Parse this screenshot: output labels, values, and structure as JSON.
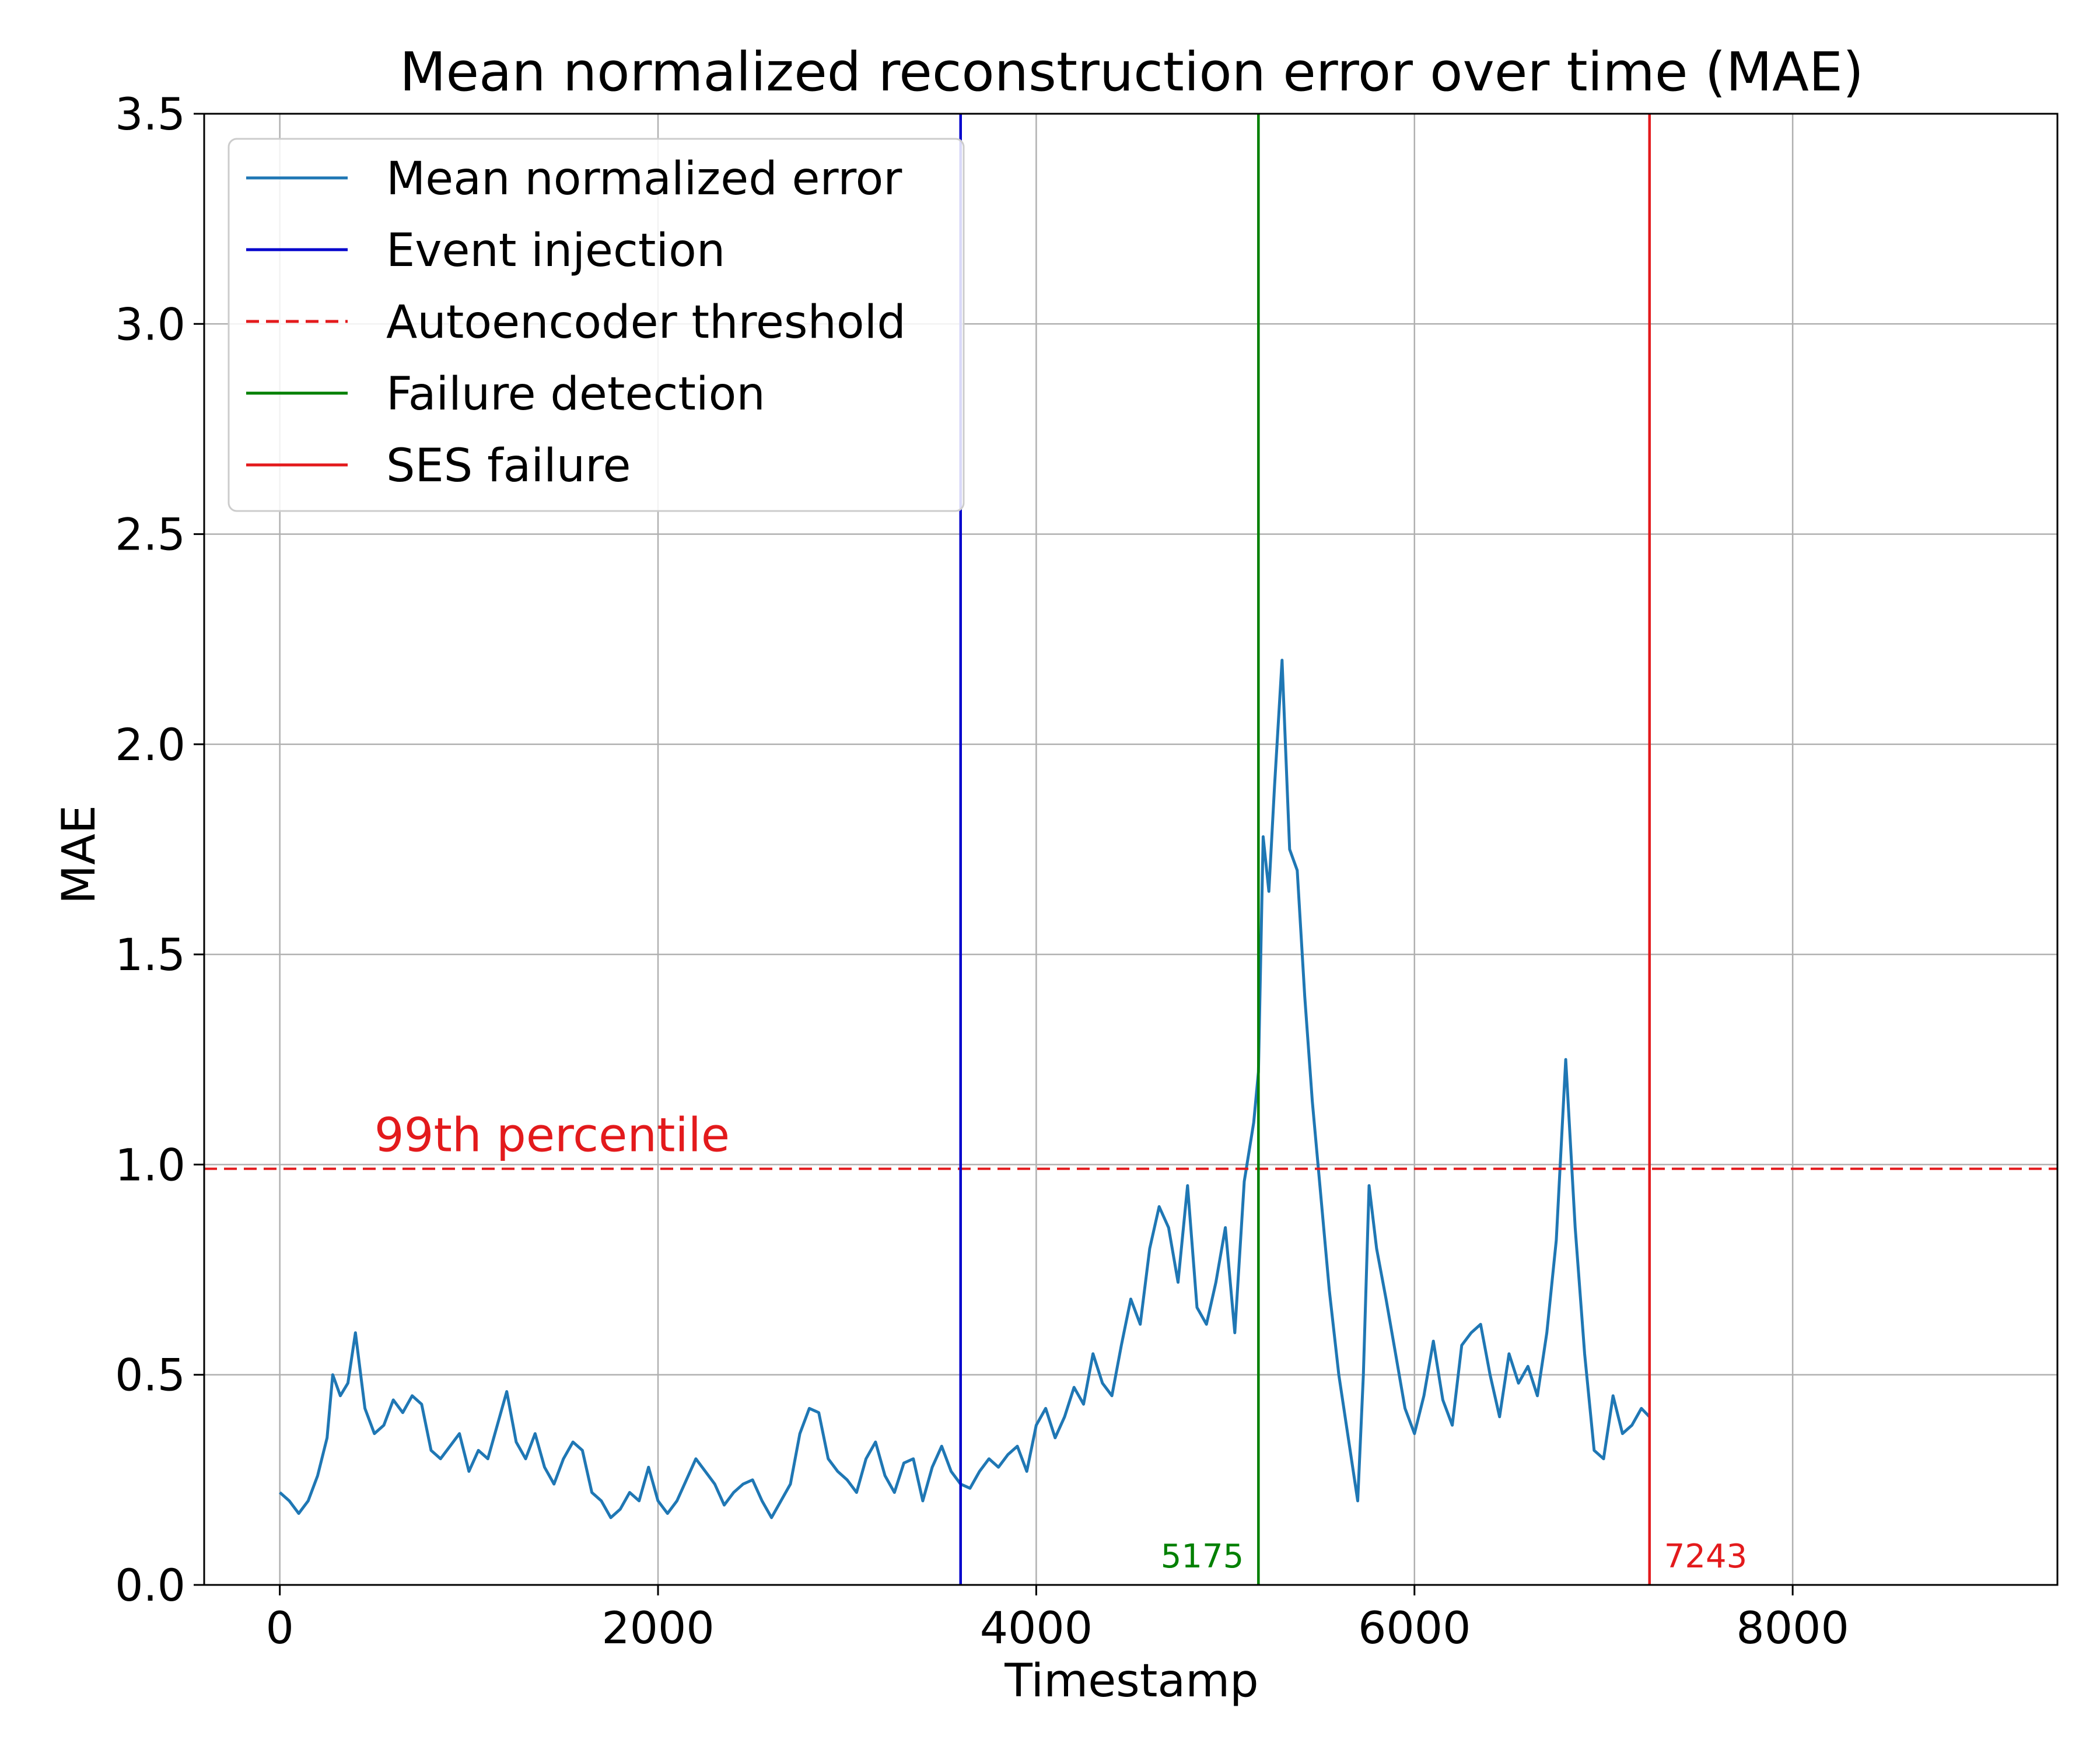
{
  "chart_data": {
    "type": "line",
    "title": "Mean normalized reconstruction error over time (MAE)",
    "xlabel": "Timestamp",
    "ylabel": "MAE",
    "xlim": [
      -400,
      9400
    ],
    "ylim": [
      0,
      3.5
    ],
    "x_ticks": [
      0,
      2000,
      4000,
      6000,
      8000
    ],
    "x_tick_labels": [
      "0",
      "2000",
      "4000",
      "6000",
      "8000"
    ],
    "y_ticks": [
      0,
      0.5,
      1.0,
      1.5,
      2.0,
      2.5,
      3.0,
      3.5
    ],
    "y_tick_labels": [
      "0.0",
      "0.5",
      "1.0",
      "1.5",
      "2.0",
      "2.5",
      "3.0",
      "3.5"
    ],
    "grid": true,
    "legend_position": "top-left",
    "series": [
      {
        "name": "Mean normalized error",
        "color": "#1f77b4",
        "points": [
          [
            0,
            0.22
          ],
          [
            50,
            0.2
          ],
          [
            100,
            0.17
          ],
          [
            150,
            0.2
          ],
          [
            200,
            0.26
          ],
          [
            250,
            0.35
          ],
          [
            280,
            0.5
          ],
          [
            320,
            0.45
          ],
          [
            360,
            0.48
          ],
          [
            400,
            0.6
          ],
          [
            450,
            0.42
          ],
          [
            500,
            0.36
          ],
          [
            550,
            0.38
          ],
          [
            600,
            0.44
          ],
          [
            650,
            0.41
          ],
          [
            700,
            0.45
          ],
          [
            750,
            0.43
          ],
          [
            800,
            0.32
          ],
          [
            850,
            0.3
          ],
          [
            900,
            0.33
          ],
          [
            950,
            0.36
          ],
          [
            1000,
            0.27
          ],
          [
            1050,
            0.32
          ],
          [
            1100,
            0.3
          ],
          [
            1150,
            0.38
          ],
          [
            1200,
            0.46
          ],
          [
            1250,
            0.34
          ],
          [
            1300,
            0.3
          ],
          [
            1350,
            0.36
          ],
          [
            1400,
            0.28
          ],
          [
            1450,
            0.24
          ],
          [
            1500,
            0.3
          ],
          [
            1550,
            0.34
          ],
          [
            1600,
            0.32
          ],
          [
            1650,
            0.22
          ],
          [
            1700,
            0.2
          ],
          [
            1750,
            0.16
          ],
          [
            1800,
            0.18
          ],
          [
            1850,
            0.22
          ],
          [
            1900,
            0.2
          ],
          [
            1950,
            0.28
          ],
          [
            2000,
            0.2
          ],
          [
            2050,
            0.17
          ],
          [
            2100,
            0.2
          ],
          [
            2150,
            0.25
          ],
          [
            2200,
            0.3
          ],
          [
            2250,
            0.27
          ],
          [
            2300,
            0.24
          ],
          [
            2350,
            0.19
          ],
          [
            2400,
            0.22
          ],
          [
            2450,
            0.24
          ],
          [
            2500,
            0.25
          ],
          [
            2550,
            0.2
          ],
          [
            2600,
            0.16
          ],
          [
            2650,
            0.2
          ],
          [
            2700,
            0.24
          ],
          [
            2750,
            0.36
          ],
          [
            2800,
            0.42
          ],
          [
            2850,
            0.41
          ],
          [
            2900,
            0.3
          ],
          [
            2950,
            0.27
          ],
          [
            3000,
            0.25
          ],
          [
            3050,
            0.22
          ],
          [
            3100,
            0.3
          ],
          [
            3150,
            0.34
          ],
          [
            3200,
            0.26
          ],
          [
            3250,
            0.22
          ],
          [
            3300,
            0.29
          ],
          [
            3350,
            0.3
          ],
          [
            3400,
            0.2
          ],
          [
            3450,
            0.28
          ],
          [
            3500,
            0.33
          ],
          [
            3550,
            0.27
          ],
          [
            3600,
            0.24
          ],
          [
            3650,
            0.23
          ],
          [
            3700,
            0.27
          ],
          [
            3750,
            0.3
          ],
          [
            3800,
            0.28
          ],
          [
            3850,
            0.31
          ],
          [
            3900,
            0.33
          ],
          [
            3950,
            0.27
          ],
          [
            4000,
            0.38
          ],
          [
            4050,
            0.42
          ],
          [
            4100,
            0.35
          ],
          [
            4150,
            0.4
          ],
          [
            4200,
            0.47
          ],
          [
            4250,
            0.43
          ],
          [
            4300,
            0.55
          ],
          [
            4350,
            0.48
          ],
          [
            4400,
            0.45
          ],
          [
            4450,
            0.57
          ],
          [
            4500,
            0.68
          ],
          [
            4550,
            0.62
          ],
          [
            4600,
            0.8
          ],
          [
            4650,
            0.9
          ],
          [
            4700,
            0.85
          ],
          [
            4750,
            0.72
          ],
          [
            4800,
            0.95
          ],
          [
            4850,
            0.66
          ],
          [
            4900,
            0.62
          ],
          [
            4950,
            0.72
          ],
          [
            5000,
            0.85
          ],
          [
            5050,
            0.6
          ],
          [
            5100,
            0.96
          ],
          [
            5150,
            1.1
          ],
          [
            5175,
            1.22
          ],
          [
            5200,
            1.78
          ],
          [
            5230,
            1.65
          ],
          [
            5260,
            1.9
          ],
          [
            5300,
            2.2
          ],
          [
            5340,
            1.75
          ],
          [
            5380,
            1.7
          ],
          [
            5420,
            1.4
          ],
          [
            5460,
            1.15
          ],
          [
            5500,
            0.95
          ],
          [
            5550,
            0.7
          ],
          [
            5600,
            0.5
          ],
          [
            5650,
            0.35
          ],
          [
            5700,
            0.2
          ],
          [
            5730,
            0.5
          ],
          [
            5760,
            0.95
          ],
          [
            5800,
            0.8
          ],
          [
            5850,
            0.68
          ],
          [
            5900,
            0.55
          ],
          [
            5950,
            0.42
          ],
          [
            6000,
            0.36
          ],
          [
            6050,
            0.45
          ],
          [
            6100,
            0.58
          ],
          [
            6150,
            0.44
          ],
          [
            6200,
            0.38
          ],
          [
            6250,
            0.57
          ],
          [
            6300,
            0.6
          ],
          [
            6350,
            0.62
          ],
          [
            6400,
            0.5
          ],
          [
            6450,
            0.4
          ],
          [
            6500,
            0.55
          ],
          [
            6550,
            0.48
          ],
          [
            6600,
            0.52
          ],
          [
            6650,
            0.45
          ],
          [
            6700,
            0.6
          ],
          [
            6750,
            0.82
          ],
          [
            6800,
            1.25
          ],
          [
            6850,
            0.85
          ],
          [
            6900,
            0.55
          ],
          [
            6950,
            0.32
          ],
          [
            7000,
            0.3
          ],
          [
            7050,
            0.45
          ],
          [
            7100,
            0.36
          ],
          [
            7150,
            0.38
          ],
          [
            7200,
            0.42
          ],
          [
            7243,
            0.4
          ]
        ]
      }
    ],
    "vlines": [
      {
        "name": "Event injection",
        "x": 3600,
        "color": "#0000cc",
        "style": "solid",
        "label": ""
      },
      {
        "name": "Failure detection",
        "x": 5175,
        "color": "#008000",
        "style": "solid",
        "label": "5175"
      },
      {
        "name": "SES failure",
        "x": 7243,
        "color": "#e31a1c",
        "style": "solid",
        "label": "7243"
      }
    ],
    "hlines": [
      {
        "name": "Autoencoder threshold",
        "y": 0.99,
        "color": "#e31a1c",
        "style": "dashed",
        "annotation": "99th percentile"
      }
    ],
    "legend_entries": [
      {
        "label": "Mean normalized error",
        "color": "#1f77b4",
        "style": "solid"
      },
      {
        "label": "Event injection",
        "color": "#0000cc",
        "style": "solid"
      },
      {
        "label": "Autoencoder threshold",
        "color": "#e31a1c",
        "style": "dashed"
      },
      {
        "label": "Failure detection",
        "color": "#008000",
        "style": "solid"
      },
      {
        "label": "SES failure",
        "color": "#e31a1c",
        "style": "solid"
      }
    ]
  }
}
